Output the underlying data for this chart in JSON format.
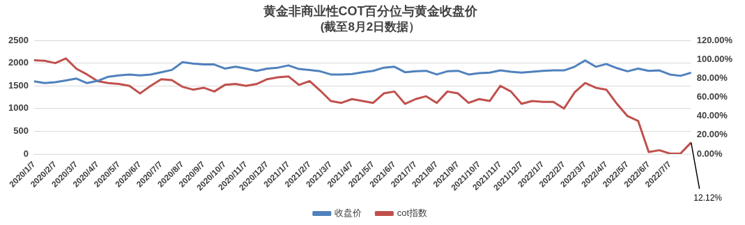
{
  "chart_data": {
    "type": "line",
    "title": "黄金非商业性COT百分位与黄金收盘价",
    "subtitle": "(截至8月2日数据）",
    "categories": [
      "2020/1/7",
      null,
      "2020/2/7",
      null,
      "2020/3/7",
      null,
      "2020/4/7",
      null,
      "2020/5/7",
      null,
      "2020/6/7",
      null,
      "2020/7/7",
      null,
      "2020/8/7",
      null,
      "2020/9/7",
      null,
      "2020/10/7",
      null,
      "2020/11/7",
      null,
      "2020/12/7",
      null,
      "2021/1/7",
      null,
      "2021/2/7",
      null,
      "2021/3/7",
      null,
      "2021/4/7",
      null,
      "2021/5/7",
      null,
      "2021/6/7",
      null,
      "2021/7/7",
      null,
      "2021/8/7",
      null,
      "2021/9/7",
      null,
      "2021/10/7",
      null,
      "2021/11/7",
      null,
      "2021/12/7",
      null,
      "2022/1/7",
      null,
      "2022/2/7",
      null,
      "2022/3/7",
      null,
      "2022/4/7",
      null,
      "2022/5/7",
      null,
      "2022/6/7",
      null,
      "2022/7/7",
      null,
      null
    ],
    "series": [
      {
        "name": "收盘价",
        "color": "#4f81bd",
        "values": [
          1600,
          1560,
          1580,
          1620,
          1660,
          1560,
          1610,
          1700,
          1730,
          1750,
          1730,
          1750,
          1800,
          1850,
          2020,
          1990,
          1970,
          1970,
          1880,
          1920,
          1880,
          1830,
          1880,
          1900,
          1950,
          1870,
          1850,
          1820,
          1750,
          1750,
          1760,
          1800,
          1830,
          1900,
          1920,
          1800,
          1820,
          1830,
          1750,
          1820,
          1830,
          1750,
          1780,
          1790,
          1840,
          1810,
          1790,
          1810,
          1830,
          1840,
          1840,
          1920,
          2060,
          1920,
          1980,
          1890,
          1820,
          1880,
          1830,
          1840,
          1750,
          1720,
          1790
        ]
      },
      {
        "name": "cot指数",
        "color": "#c0504d",
        "axis": "y2",
        "values": [
          99,
          98.5,
          96,
          101,
          90,
          84,
          77,
          75,
          74,
          72,
          64,
          72,
          79,
          78,
          71,
          68,
          70,
          66,
          73,
          74,
          72,
          74,
          79,
          81,
          82,
          73,
          77,
          67,
          56,
          54,
          58,
          56,
          54,
          64,
          66,
          53,
          58,
          61,
          54,
          66,
          64,
          54,
          58,
          56,
          72,
          66,
          53,
          56,
          55,
          55,
          48,
          65,
          75,
          70,
          68,
          53,
          40,
          35,
          2,
          4,
          0.5,
          0.5,
          12.12
        ],
        "value_labels": [
          null,
          null,
          null,
          null,
          null,
          null,
          null,
          null,
          null,
          null,
          null,
          null,
          null,
          null,
          null,
          null,
          null,
          null,
          null,
          null,
          null,
          null,
          null,
          null,
          null,
          null,
          null,
          null,
          null,
          null,
          null,
          null,
          null,
          null,
          null,
          null,
          null,
          null,
          null,
          null,
          null,
          null,
          null,
          null,
          null,
          null,
          null,
          null,
          null,
          null,
          null,
          null,
          null,
          null,
          null,
          null,
          null,
          null,
          null,
          null,
          null,
          null,
          "12.12%"
        ]
      }
    ],
    "ylim": [
      0,
      2500
    ],
    "yticks": [
      0,
      500,
      1000,
      1500,
      2000,
      2500
    ],
    "y2lim": [
      0,
      120
    ],
    "y2ticks": [
      {
        "value": 0,
        "label": "0.00%"
      },
      {
        "value": 20,
        "label": "20.00%"
      },
      {
        "value": 40,
        "label": "40.00%"
      },
      {
        "value": 60,
        "label": "60.00%"
      },
      {
        "value": 80,
        "label": "80.00%"
      },
      {
        "value": 100,
        "label": "100.00%"
      },
      {
        "value": 120,
        "label": "120.00%"
      }
    ],
    "grid": "y",
    "legend": "bottom"
  }
}
